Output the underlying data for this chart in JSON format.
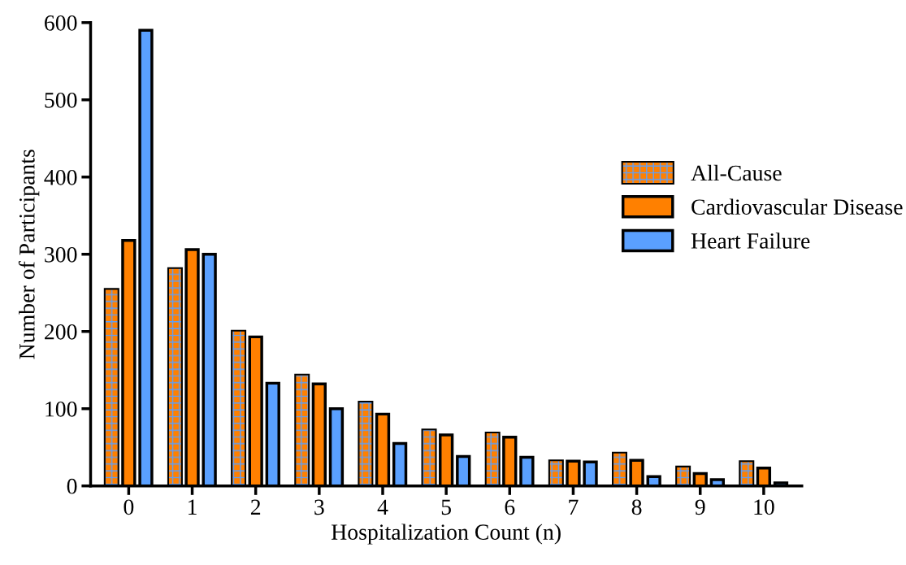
{
  "chart_data": {
    "type": "bar",
    "xlabel": "Hospitalization Count (n)",
    "ylabel": "Number of Participants",
    "categories": [
      "0",
      "1",
      "2",
      "3",
      "4",
      "5",
      "6",
      "7",
      "8",
      "9",
      "10"
    ],
    "series": [
      {
        "name": "All-Cause",
        "color": "#ff8000",
        "values": [
          254,
          281,
          200,
          143,
          108,
          72,
          68,
          32,
          42,
          24,
          31
        ]
      },
      {
        "name": "Cardiovascular Disease",
        "color": "#ff8000",
        "values": [
          318,
          306,
          193,
          132,
          93,
          66,
          63,
          32,
          33,
          16,
          23
        ]
      },
      {
        "name": "Heart Failure",
        "color": "#5aa0ff",
        "values": [
          590,
          300,
          133,
          100,
          55,
          38,
          37,
          31,
          12,
          8,
          4
        ]
      }
    ],
    "ylim": [
      0,
      600
    ],
    "yticks": [
      0,
      100,
      200,
      300,
      400,
      500,
      600
    ],
    "grid": false,
    "legend": "right"
  }
}
